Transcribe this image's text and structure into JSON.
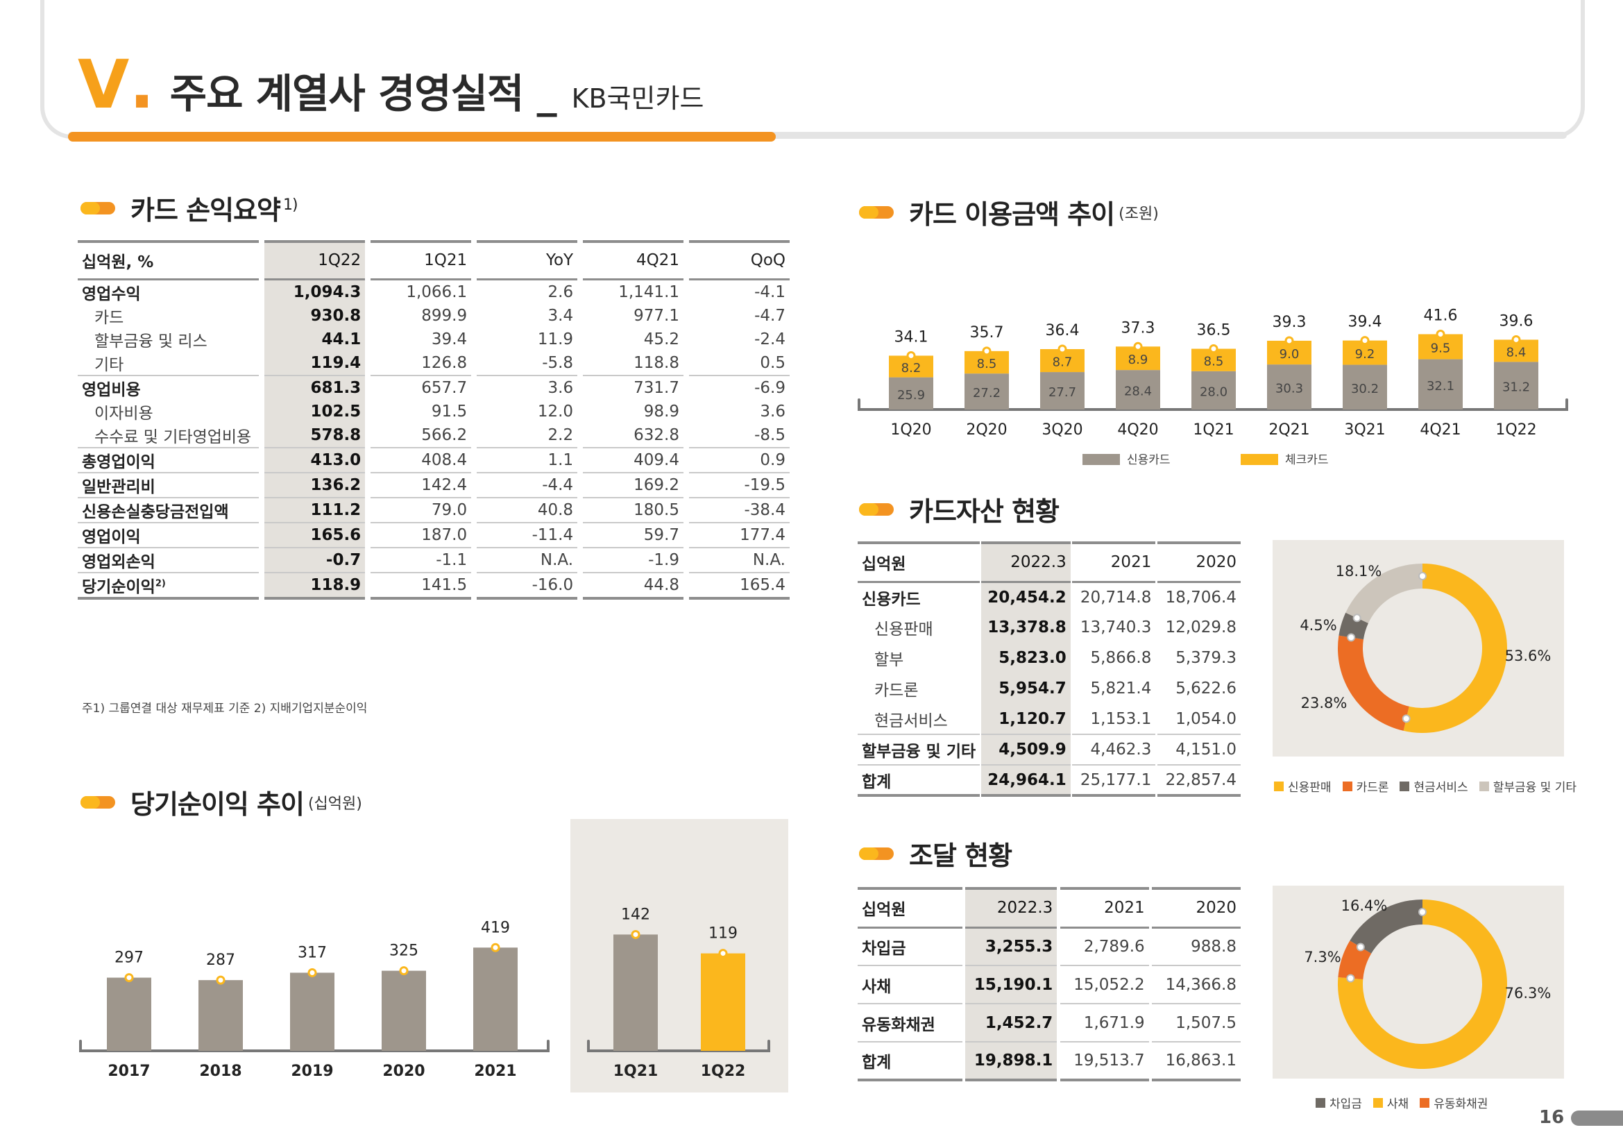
{
  "header": {
    "roman": "V",
    "dot": ".",
    "title": "주요 계열사 경영실적 _",
    "subtitle": "KB국민카드"
  },
  "pl_summary": {
    "title": "카드 손익요약",
    "sup": "1)",
    "columns": [
      "십억원, %",
      "1Q22",
      "1Q21",
      "YoY",
      "4Q21",
      "QoQ"
    ],
    "rows": [
      {
        "label": "영업수익",
        "sub": false,
        "values": [
          "1,094.3",
          "1,066.1",
          "2.6",
          "1,141.1",
          "-4.1"
        ]
      },
      {
        "label": "카드",
        "sub": true,
        "values": [
          "930.8",
          "899.9",
          "3.4",
          "977.1",
          "-4.7"
        ]
      },
      {
        "label": "할부금융 및 리스",
        "sub": true,
        "values": [
          "44.1",
          "39.4",
          "11.9",
          "45.2",
          "-2.4"
        ]
      },
      {
        "label": "기타",
        "sub": true,
        "values": [
          "119.4",
          "126.8",
          "-5.8",
          "118.8",
          "0.5"
        ]
      },
      {
        "label": "영업비용",
        "sub": false,
        "values": [
          "681.3",
          "657.7",
          "3.6",
          "731.7",
          "-6.9"
        ]
      },
      {
        "label": "이자비용",
        "sub": true,
        "values": [
          "102.5",
          "91.5",
          "12.0",
          "98.9",
          "3.6"
        ]
      },
      {
        "label": "수수료 및 기타영업비용",
        "sub": true,
        "values": [
          "578.8",
          "566.2",
          "2.2",
          "632.8",
          "-8.5"
        ]
      },
      {
        "label": "총영업이익",
        "sub": false,
        "values": [
          "413.0",
          "408.4",
          "1.1",
          "409.4",
          "0.9"
        ]
      },
      {
        "label": "일반관리비",
        "sub": false,
        "values": [
          "136.2",
          "142.4",
          "-4.4",
          "169.2",
          "-19.5"
        ]
      },
      {
        "label": "신용손실충당금전입액",
        "sub": false,
        "values": [
          "111.2",
          "79.0",
          "40.8",
          "180.5",
          "-38.4"
        ]
      },
      {
        "label": "영업이익",
        "sub": false,
        "values": [
          "165.6",
          "187.0",
          "-11.4",
          "59.7",
          "177.4"
        ]
      },
      {
        "label": "영업외손익",
        "sub": false,
        "values": [
          "-0.7",
          "-1.1",
          "N.A.",
          "-1.9",
          "N.A."
        ]
      },
      {
        "label": "당기순이익",
        "sup": "2)",
        "sub": false,
        "values": [
          "118.9",
          "141.5",
          "-16.0",
          "44.8",
          "165.4"
        ]
      }
    ],
    "footnote": "주1) 그룹연결 대상 재무제표 기준  2) 지배기업지분순이익"
  },
  "net_income": {
    "title": "당기순이익 추이",
    "unit": "(십억원)"
  },
  "card_usage": {
    "title": "카드 이용금액 추이",
    "unit": "(조원)"
  },
  "card_assets": {
    "title": "카드자산 현황",
    "columns": [
      "십억원",
      "2022.3",
      "2021",
      "2020"
    ],
    "rows": [
      {
        "label": "신용카드",
        "sub": false,
        "values": [
          "20,454.2",
          "20,714.8",
          "18,706.4"
        ]
      },
      {
        "label": "신용판매",
        "sub": true,
        "values": [
          "13,378.8",
          "13,740.3",
          "12,029.8"
        ]
      },
      {
        "label": "할부",
        "sub": true,
        "values": [
          "5,823.0",
          "5,866.8",
          "5,379.3"
        ]
      },
      {
        "label": "카드론",
        "sub": true,
        "values": [
          "5,954.7",
          "5,821.4",
          "5,622.6"
        ]
      },
      {
        "label": "현금서비스",
        "sub": true,
        "values": [
          "1,120.7",
          "1,153.1",
          "1,054.0"
        ]
      },
      {
        "label": "할부금융 및 기타",
        "sub": false,
        "values": [
          "4,509.9",
          "4,462.3",
          "4,151.0"
        ]
      },
      {
        "label": "합계",
        "sub": false,
        "values": [
          "24,964.1",
          "25,177.1",
          "22,857.4"
        ]
      }
    ]
  },
  "funding": {
    "title": "조달 현황",
    "columns": [
      "십억원",
      "2022.3",
      "2021",
      "2020"
    ],
    "rows": [
      {
        "label": "차입금",
        "values": [
          "3,255.3",
          "2,789.6",
          "988.8"
        ]
      },
      {
        "label": "사채",
        "values": [
          "15,190.1",
          "15,052.2",
          "14,366.8"
        ]
      },
      {
        "label": "유동화채권",
        "values": [
          "1,452.7",
          "1,671.9",
          "1,507.5"
        ]
      },
      {
        "label": "합계",
        "values": [
          "19,898.1",
          "19,513.7",
          "16,863.1"
        ]
      }
    ]
  },
  "colors": {
    "grey": "#9e968c",
    "yellow": "#fbb71d",
    "orange": "#f39321",
    "dark": "#6f6a64",
    "light": "#ccc5bb",
    "deep_orange": "#ec6d24",
    "panel": "#ece9e4"
  },
  "chart_data": [
    {
      "type": "bar",
      "categories": [
        "2017",
        "2018",
        "2019",
        "2020",
        "2021"
      ],
      "values": [
        297,
        287,
        317,
        325,
        419
      ],
      "value_labels": [
        "297",
        "287",
        "317",
        "325",
        "419"
      ],
      "unit": "(십억원)"
    },
    {
      "type": "bar",
      "categories": [
        "1Q21",
        "1Q22"
      ],
      "values": [
        142,
        119
      ],
      "value_labels": [
        "142",
        "119"
      ]
    },
    {
      "type": "bar",
      "stacked": true,
      "categories": [
        "1Q20",
        "2Q20",
        "3Q20",
        "4Q20",
        "1Q21",
        "2Q21",
        "3Q21",
        "4Q21",
        "1Q22"
      ],
      "series": [
        {
          "name": "신용카드",
          "values": [
            25.9,
            27.2,
            27.7,
            28.4,
            28.0,
            30.3,
            30.2,
            32.1,
            31.2
          ],
          "labels": [
            "25.9",
            "27.2",
            "27.7",
            "28.4",
            "28.0",
            "30.3",
            "30.2",
            "32.1",
            "31.2"
          ]
        },
        {
          "name": "체크카드",
          "values": [
            8.2,
            8.5,
            8.7,
            8.9,
            8.5,
            9.0,
            9.2,
            9.5,
            8.4
          ],
          "labels": [
            "8.2",
            "8.5",
            "8.7",
            "8.9",
            "8.5",
            "9.0",
            "9.2",
            "9.5",
            "8.4"
          ]
        }
      ],
      "totals": [
        "34.1",
        "35.7",
        "36.4",
        "37.3",
        "36.5",
        "39.3",
        "39.4",
        "41.6",
        "39.6"
      ],
      "unit": "(조원)"
    },
    {
      "type": "pie",
      "slices": [
        {
          "name": "신용판매",
          "value": 53.6,
          "label": "53.6%"
        },
        {
          "name": "카드론",
          "value": 23.8,
          "label": "23.8%"
        },
        {
          "name": "현금서비스",
          "value": 4.5,
          "label": "4.5%"
        },
        {
          "name": "할부금융 및 기타",
          "value": 18.1,
          "label": "18.1%"
        }
      ]
    },
    {
      "type": "pie",
      "slices": [
        {
          "name": "사채",
          "value": 76.3,
          "label": "76.3%"
        },
        {
          "name": "유동화채권",
          "value": 7.3,
          "label": "7.3%"
        },
        {
          "name": "차입금",
          "value": 16.4,
          "label": "16.4%"
        }
      ],
      "legend": [
        "차입금",
        "사채",
        "유동화채권"
      ]
    }
  ],
  "page": {
    "number": "16"
  }
}
